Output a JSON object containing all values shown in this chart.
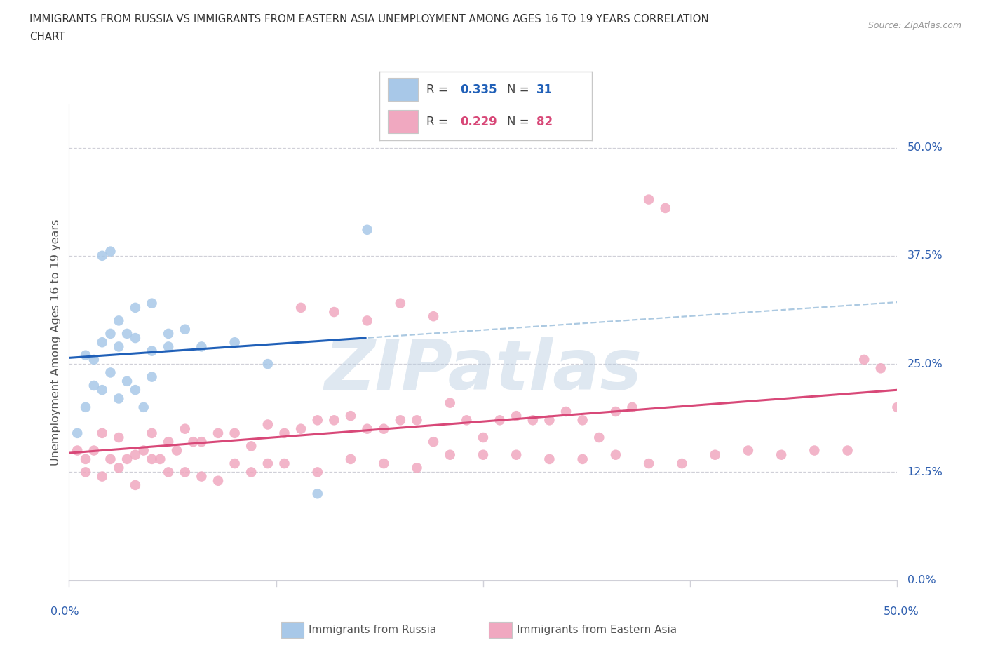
{
  "title_line1": "IMMIGRANTS FROM RUSSIA VS IMMIGRANTS FROM EASTERN ASIA UNEMPLOYMENT AMONG AGES 16 TO 19 YEARS CORRELATION",
  "title_line2": "CHART",
  "source": "Source: ZipAtlas.com",
  "ylabel": "Unemployment Among Ages 16 to 19 years",
  "ytick_values": [
    0.0,
    12.5,
    25.0,
    37.5,
    50.0
  ],
  "xrange": [
    0,
    50
  ],
  "yrange": [
    0,
    55
  ],
  "russia_color": "#a8c8e8",
  "russia_line_color": "#2060b8",
  "russia_line_dash_color": "#90b8d8",
  "eastern_asia_color": "#f0a8c0",
  "eastern_asia_line_color": "#d84878",
  "russia_R": 0.335,
  "russia_N": 31,
  "eastern_asia_R": 0.229,
  "eastern_asia_N": 82,
  "russia_x": [
    0.5,
    1.0,
    1.5,
    2.0,
    2.5,
    3.0,
    3.5,
    4.0,
    4.5,
    5.0,
    1.0,
    1.5,
    2.0,
    2.5,
    3.0,
    3.5,
    4.0,
    5.0,
    6.0,
    2.0,
    2.5,
    3.0,
    4.0,
    5.0,
    6.0,
    7.0,
    8.0,
    10.0,
    12.0,
    15.0,
    18.0
  ],
  "russia_y": [
    17.0,
    20.0,
    22.5,
    22.0,
    24.0,
    21.0,
    23.0,
    22.0,
    20.0,
    23.5,
    26.0,
    25.5,
    27.5,
    28.5,
    27.0,
    28.5,
    28.0,
    26.5,
    27.0,
    37.5,
    38.0,
    30.0,
    31.5,
    32.0,
    28.5,
    29.0,
    27.0,
    27.5,
    25.0,
    10.0,
    40.5
  ],
  "eastern_asia_x": [
    0.5,
    1.0,
    1.5,
    2.0,
    2.5,
    3.0,
    3.5,
    4.0,
    4.5,
    5.0,
    5.5,
    6.0,
    6.5,
    7.0,
    7.5,
    8.0,
    9.0,
    10.0,
    11.0,
    12.0,
    13.0,
    14.0,
    15.0,
    16.0,
    17.0,
    18.0,
    19.0,
    20.0,
    21.0,
    22.0,
    23.0,
    24.0,
    25.0,
    26.0,
    27.0,
    28.0,
    29.0,
    30.0,
    31.0,
    32.0,
    33.0,
    34.0,
    35.0,
    36.0,
    1.0,
    2.0,
    3.0,
    4.0,
    5.0,
    6.0,
    7.0,
    8.0,
    9.0,
    10.0,
    11.0,
    12.0,
    13.0,
    15.0,
    17.0,
    19.0,
    21.0,
    23.0,
    25.0,
    27.0,
    29.0,
    31.0,
    33.0,
    35.0,
    37.0,
    39.0,
    41.0,
    43.0,
    45.0,
    47.0,
    48.0,
    49.0,
    50.0,
    14.0,
    16.0,
    18.0,
    20.0,
    22.0
  ],
  "eastern_asia_y": [
    15.0,
    14.0,
    15.0,
    17.0,
    14.0,
    16.5,
    14.0,
    14.5,
    15.0,
    17.0,
    14.0,
    16.0,
    15.0,
    17.5,
    16.0,
    16.0,
    17.0,
    17.0,
    15.5,
    18.0,
    17.0,
    17.5,
    18.5,
    18.5,
    19.0,
    17.5,
    17.5,
    18.5,
    18.5,
    16.0,
    20.5,
    18.5,
    16.5,
    18.5,
    19.0,
    18.5,
    18.5,
    19.5,
    18.5,
    16.5,
    19.5,
    20.0,
    44.0,
    43.0,
    12.5,
    12.0,
    13.0,
    11.0,
    14.0,
    12.5,
    12.5,
    12.0,
    11.5,
    13.5,
    12.5,
    13.5,
    13.5,
    12.5,
    14.0,
    13.5,
    13.0,
    14.5,
    14.5,
    14.5,
    14.0,
    14.0,
    14.5,
    13.5,
    13.5,
    14.5,
    15.0,
    14.5,
    15.0,
    15.0,
    25.5,
    24.5,
    20.0,
    31.5,
    31.0,
    30.0,
    32.0,
    30.5
  ],
  "watermark_text": "ZIPatlas",
  "background_color": "#ffffff",
  "grid_color": "#d0d0d8",
  "legend_box_color": "#ffffff",
  "legend_border_color": "#c8c8c8",
  "right_label_color": "#3060b0",
  "title_color": "#333333",
  "ylabel_color": "#555555",
  "source_color": "#999999"
}
